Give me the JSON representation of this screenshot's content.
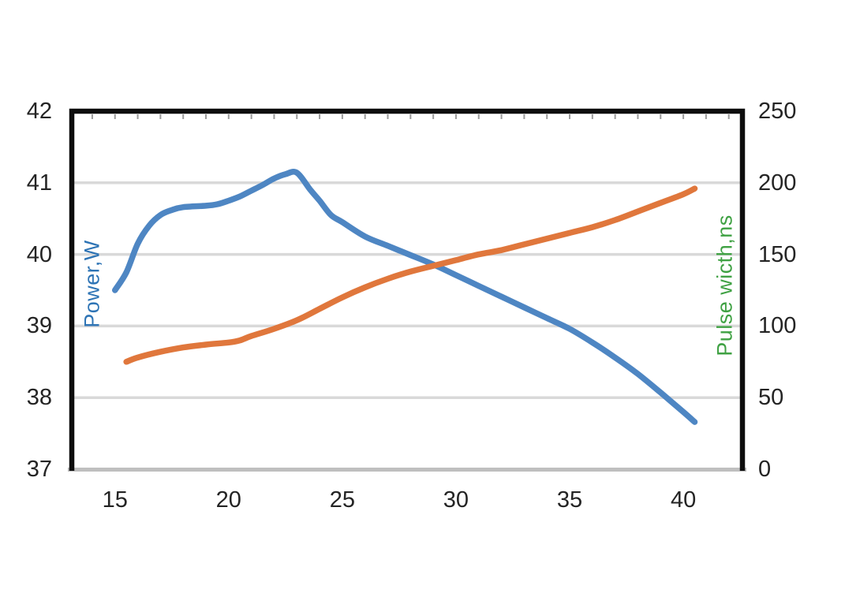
{
  "chart_data": {
    "type": "line",
    "title": "",
    "legend": "none",
    "grid": "horizontal-on",
    "x_axis": {
      "label": "",
      "tick_labels": [
        15,
        20,
        25,
        30,
        35,
        40
      ],
      "range": [
        13.1,
        42.6
      ],
      "minor_tick_interval": 1
    },
    "y_left_axis": {
      "label": "Power,W",
      "label_color": "#2e74b5",
      "tick_labels": [
        42,
        41,
        40,
        39,
        38,
        37
      ],
      "range": [
        37,
        42
      ]
    },
    "y_right_axis": {
      "label": "Pulse wicth,ns",
      "label_color": "#3fa143",
      "tick_labels": [
        250,
        200,
        150,
        100,
        50,
        0
      ],
      "range": [
        0,
        250
      ]
    },
    "gridlines": {
      "left_axis_values": [
        41,
        40,
        39,
        38
      ],
      "color": "#d9d9d9"
    },
    "frame": {
      "spine_color": "#0d0d0d",
      "bottom_axis_color": "#bfbfbf",
      "minor_tick_color": "#3a3a3a"
    },
    "series": [
      {
        "name": "Power",
        "axis": "left",
        "color": "#4e86c3",
        "smooth": true,
        "points": [
          [
            15,
            39.5
          ],
          [
            15.5,
            39.75
          ],
          [
            16,
            40.15
          ],
          [
            16.5,
            40.4
          ],
          [
            17,
            40.55
          ],
          [
            17.5,
            40.62
          ],
          [
            18,
            40.66
          ],
          [
            19,
            40.68
          ],
          [
            19.5,
            40.7
          ],
          [
            20,
            40.75
          ],
          [
            20.5,
            40.81
          ],
          [
            21,
            40.89
          ],
          [
            21.5,
            40.97
          ],
          [
            22,
            41.06
          ],
          [
            22.5,
            41.12
          ],
          [
            23,
            41.14
          ],
          [
            23.6,
            40.9
          ],
          [
            24,
            40.75
          ],
          [
            24.5,
            40.55
          ],
          [
            25,
            40.45
          ],
          [
            26,
            40.25
          ],
          [
            27,
            40.12
          ],
          [
            28,
            39.99
          ],
          [
            29,
            39.86
          ],
          [
            30,
            39.71
          ],
          [
            31,
            39.56
          ],
          [
            32,
            39.41
          ],
          [
            33,
            39.26
          ],
          [
            34,
            39.11
          ],
          [
            35,
            38.96
          ],
          [
            36,
            38.77
          ],
          [
            37,
            38.56
          ],
          [
            38,
            38.33
          ],
          [
            39,
            38.07
          ],
          [
            40,
            37.8
          ],
          [
            40.5,
            37.66
          ]
        ]
      },
      {
        "name": "Pulse width",
        "axis": "right",
        "color": "#e0773c",
        "smooth": true,
        "points": [
          [
            15.5,
            75
          ],
          [
            16,
            78
          ],
          [
            17,
            82
          ],
          [
            18,
            85
          ],
          [
            19,
            87
          ],
          [
            20,
            88.5
          ],
          [
            20.5,
            90
          ],
          [
            21,
            93
          ],
          [
            22,
            98
          ],
          [
            23,
            104
          ],
          [
            24,
            112
          ],
          [
            25,
            120
          ],
          [
            26,
            127
          ],
          [
            27,
            133
          ],
          [
            28,
            138
          ],
          [
            29,
            142
          ],
          [
            30,
            146
          ],
          [
            31,
            150
          ],
          [
            32,
            153
          ],
          [
            33,
            157
          ],
          [
            34,
            161
          ],
          [
            35,
            165
          ],
          [
            36,
            169
          ],
          [
            37,
            174
          ],
          [
            38,
            180
          ],
          [
            39,
            186
          ],
          [
            40,
            192
          ],
          [
            40.5,
            196
          ]
        ]
      }
    ]
  }
}
